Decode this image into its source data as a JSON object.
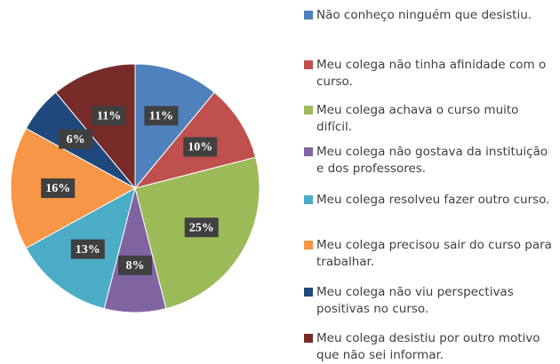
{
  "chart_data": {
    "type": "pie",
    "categories": [
      "Não conheço ninguém que desistiu.",
      "Meu colega não tinha afinidade com o curso.",
      "Meu colega achava o curso muito difícil.",
      "Meu colega não gostava da instituição e dos professores.",
      "Meu colega resolveu fazer outro curso.",
      "Meu colega precisou sair do curso para trabalhar.",
      "Meu colega não viu perspectivas positivas no curso.",
      "Meu colega desistiu por outro motivo que não sei informar."
    ],
    "values": [
      11,
      10,
      25,
      8,
      13,
      16,
      6,
      11
    ],
    "value_labels": [
      "11%",
      "10%",
      "25%",
      "8%",
      "13%",
      "16%",
      "6%",
      "11%"
    ],
    "colors": [
      "#4f81bd",
      "#c0504d",
      "#9bbb59",
      "#8064a2",
      "#4bacc6",
      "#f79646",
      "#1f497d",
      "#772c2a"
    ],
    "legend": "right"
  }
}
